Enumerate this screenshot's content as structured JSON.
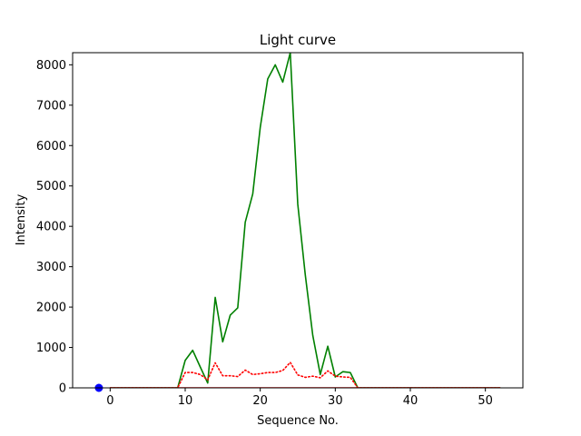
{
  "chart_data": {
    "type": "line",
    "title": "Light curve",
    "xlabel": "Sequence No.",
    "ylabel": "Intensity",
    "xlim": [
      -5,
      55
    ],
    "ylim": [
      0,
      8300
    ],
    "xticks": [
      0,
      10,
      20,
      30,
      40,
      50
    ],
    "yticks": [
      0,
      1000,
      2000,
      3000,
      4000,
      5000,
      6000,
      7000,
      8000
    ],
    "grid": false,
    "series": [
      {
        "style": "solid",
        "color": "#008000",
        "x": [
          0,
          1,
          2,
          3,
          4,
          5,
          6,
          7,
          8,
          9,
          10,
          11,
          12,
          13,
          14,
          15,
          16,
          17,
          18,
          19,
          20,
          21,
          22,
          23,
          24,
          25,
          26,
          27,
          28,
          29,
          30,
          31,
          32,
          33,
          34,
          35,
          36,
          37,
          38,
          39,
          40,
          41,
          42,
          43,
          44,
          45,
          46,
          47,
          48,
          49,
          50,
          51,
          52
        ],
        "y": [
          0,
          0,
          0,
          0,
          0,
          0,
          0,
          0,
          0,
          0,
          680,
          930,
          520,
          120,
          2240,
          1140,
          1800,
          1980,
          4100,
          4800,
          6450,
          7650,
          8000,
          7570,
          8300,
          4550,
          2800,
          1300,
          330,
          1030,
          270,
          400,
          380,
          0,
          0,
          0,
          0,
          0,
          0,
          0,
          0,
          0,
          0,
          0,
          0,
          0,
          0,
          0,
          0,
          0,
          0,
          0,
          0
        ]
      },
      {
        "style": "dotted",
        "color": "#ff0000",
        "x": [
          0,
          1,
          2,
          3,
          4,
          5,
          6,
          7,
          8,
          9,
          10,
          11,
          12,
          13,
          14,
          15,
          16,
          17,
          18,
          19,
          20,
          21,
          22,
          23,
          24,
          25,
          26,
          27,
          28,
          29,
          30,
          31,
          32,
          33,
          34,
          35,
          36,
          37,
          38,
          39,
          40,
          41,
          42,
          43,
          44,
          45,
          46,
          47,
          48,
          49,
          50,
          51,
          52
        ],
        "y": [
          0,
          0,
          0,
          0,
          0,
          0,
          0,
          0,
          0,
          0,
          380,
          380,
          330,
          200,
          620,
          300,
          300,
          280,
          440,
          330,
          350,
          380,
          380,
          430,
          630,
          320,
          260,
          290,
          250,
          420,
          290,
          270,
          260,
          0,
          0,
          0,
          0,
          0,
          0,
          0,
          0,
          0,
          0,
          0,
          0,
          0,
          0,
          0,
          0,
          0,
          0,
          0,
          0
        ]
      },
      {
        "style": "solid",
        "color": "#ff0000",
        "x": [
          0,
          52
        ],
        "y": [
          0,
          0
        ]
      },
      {
        "style": "marker",
        "color": "#0000ff",
        "x": [
          -1.5
        ],
        "y": [
          0
        ]
      }
    ]
  }
}
